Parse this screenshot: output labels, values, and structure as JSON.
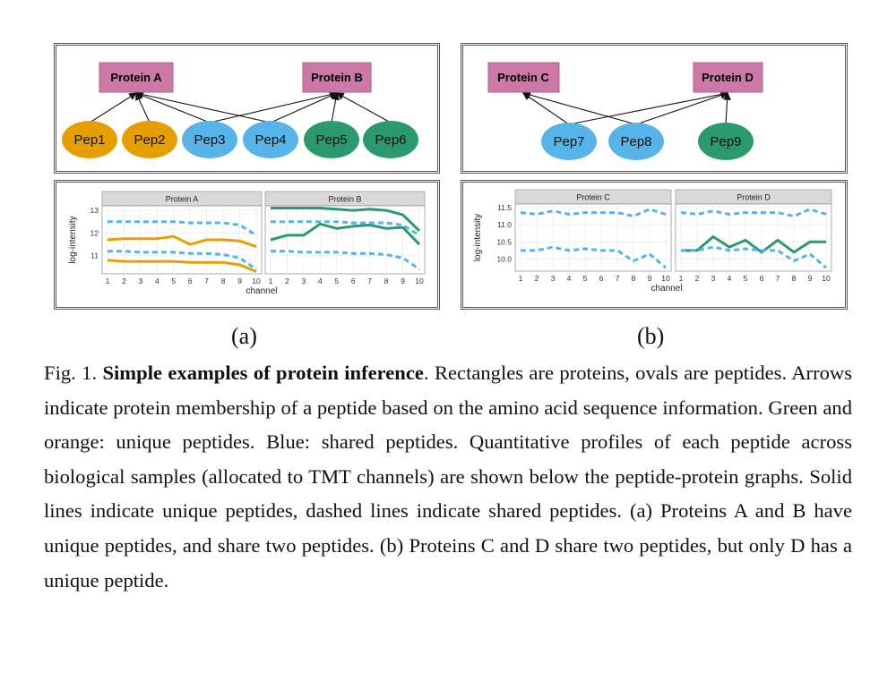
{
  "panel_a": {
    "proteins": [
      "Protein A",
      "Protein B"
    ],
    "peptides": [
      {
        "label": "Pep1",
        "type": "unique-orange"
      },
      {
        "label": "Pep2",
        "type": "unique-orange"
      },
      {
        "label": "Pep3",
        "type": "shared"
      },
      {
        "label": "Pep4",
        "type": "shared"
      },
      {
        "label": "Pep5",
        "type": "unique-green"
      },
      {
        "label": "Pep6",
        "type": "unique-green"
      }
    ],
    "edges": [
      [
        "Pep1",
        "Protein A"
      ],
      [
        "Pep2",
        "Protein A"
      ],
      [
        "Pep3",
        "Protein A"
      ],
      [
        "Pep4",
        "Protein A"
      ],
      [
        "Pep3",
        "Protein B"
      ],
      [
        "Pep4",
        "Protein B"
      ],
      [
        "Pep5",
        "Protein B"
      ],
      [
        "Pep6",
        "Protein B"
      ]
    ],
    "label": "(a)"
  },
  "panel_b": {
    "proteins": [
      "Protein C",
      "Protein D"
    ],
    "peptides": [
      {
        "label": "Pep7",
        "type": "shared"
      },
      {
        "label": "Pep8",
        "type": "shared"
      },
      {
        "label": "Pep9",
        "type": "unique-green"
      }
    ],
    "edges": [
      [
        "Pep7",
        "Protein C"
      ],
      [
        "Pep8",
        "Protein C"
      ],
      [
        "Pep7",
        "Protein D"
      ],
      [
        "Pep8",
        "Protein D"
      ],
      [
        "Pep9",
        "Protein D"
      ]
    ],
    "label": "(b)"
  },
  "colors": {
    "protein_fill": "#cc79a7",
    "orange": "#e69f00",
    "blue": "#56b4e9",
    "green": "#2a9a6e",
    "facet_strip": "#d9d9d9",
    "grid": "#ebebeb"
  },
  "chart_data": [
    {
      "type": "line",
      "facets": [
        "Protein A",
        "Protein B"
      ],
      "xlabel": "channel",
      "ylabel": "log-intensity",
      "x": [
        1,
        2,
        3,
        4,
        5,
        6,
        7,
        8,
        9,
        10
      ],
      "ylim": [
        10.2,
        13.2
      ],
      "yticks": [
        11,
        12,
        13
      ],
      "series": [
        {
          "facet": "Protein A",
          "style": "solid",
          "color": "orange",
          "values": [
            11.7,
            11.75,
            11.75,
            11.75,
            11.85,
            11.5,
            11.7,
            11.7,
            11.65,
            11.4
          ]
        },
        {
          "facet": "Protein A",
          "style": "solid",
          "color": "orange",
          "values": [
            10.8,
            10.75,
            10.75,
            10.75,
            10.75,
            10.7,
            10.7,
            10.7,
            10.6,
            10.3
          ]
        },
        {
          "facet": "Protein A",
          "style": "dashed",
          "color": "blue",
          "values": [
            12.5,
            12.5,
            12.5,
            12.5,
            12.5,
            12.45,
            12.45,
            12.45,
            12.35,
            11.9
          ]
        },
        {
          "facet": "Protein A",
          "style": "dashed",
          "color": "blue",
          "values": [
            11.2,
            11.2,
            11.15,
            11.15,
            11.15,
            11.1,
            11.1,
            11.05,
            10.9,
            10.4
          ]
        },
        {
          "facet": "Protein B",
          "style": "solid",
          "color": "green",
          "values": [
            13.1,
            13.1,
            13.1,
            13.1,
            13.05,
            13.0,
            13.05,
            13.0,
            12.8,
            12.1
          ]
        },
        {
          "facet": "Protein B",
          "style": "solid",
          "color": "green",
          "values": [
            11.7,
            11.9,
            11.9,
            12.4,
            12.2,
            12.3,
            12.35,
            12.2,
            12.25,
            11.5
          ]
        },
        {
          "facet": "Protein B",
          "style": "dashed",
          "color": "blue",
          "values": [
            12.5,
            12.5,
            12.5,
            12.5,
            12.5,
            12.45,
            12.45,
            12.45,
            12.35,
            11.9
          ]
        },
        {
          "facet": "Protein B",
          "style": "dashed",
          "color": "blue",
          "values": [
            11.2,
            11.2,
            11.15,
            11.15,
            11.15,
            11.1,
            11.1,
            11.05,
            10.9,
            10.4
          ]
        }
      ]
    },
    {
      "type": "line",
      "facets": [
        "Protein C",
        "Protein D"
      ],
      "xlabel": "channel",
      "ylabel": "log-intensity",
      "x": [
        1,
        2,
        3,
        4,
        5,
        6,
        7,
        8,
        9,
        10
      ],
      "ylim": [
        9.65,
        11.6
      ],
      "yticks": [
        10.0,
        10.5,
        11.0,
        11.5
      ],
      "ytick_labels": [
        "10.0",
        "10.5",
        "11.0",
        "11.5"
      ],
      "series": [
        {
          "facet": "Protein C",
          "style": "dashed",
          "color": "blue",
          "values": [
            11.35,
            11.3,
            11.4,
            11.3,
            11.35,
            11.35,
            11.35,
            11.25,
            11.45,
            11.3
          ]
        },
        {
          "facet": "Protein C",
          "style": "dashed",
          "color": "blue",
          "values": [
            10.25,
            10.25,
            10.35,
            10.25,
            10.3,
            10.25,
            10.25,
            9.95,
            10.15,
            9.75
          ]
        },
        {
          "facet": "Protein D",
          "style": "solid",
          "color": "green",
          "values": [
            10.25,
            10.25,
            10.65,
            10.35,
            10.55,
            10.2,
            10.55,
            10.2,
            10.5,
            10.5
          ]
        },
        {
          "facet": "Protein D",
          "style": "dashed",
          "color": "blue",
          "values": [
            11.35,
            11.3,
            11.4,
            11.3,
            11.35,
            11.35,
            11.35,
            11.25,
            11.45,
            11.3
          ]
        },
        {
          "facet": "Protein D",
          "style": "dashed",
          "color": "blue",
          "values": [
            10.25,
            10.25,
            10.35,
            10.25,
            10.3,
            10.25,
            10.25,
            9.95,
            10.15,
            9.75
          ]
        }
      ]
    }
  ],
  "caption": {
    "prefix": "Fig. 1. ",
    "bold": "Simple examples of protein inference",
    "text": ". Rectangles are proteins, ovals are peptides. Arrows indicate protein membership of a peptide based on the amino acid sequence information. Green and orange: unique peptides. Blue: shared peptides. Quantitative profiles of each peptide across biological samples (allocated to TMT channels) are shown below the peptide-protein graphs. Solid lines indicate unique peptides, dashed lines indicate shared peptides. (a) Proteins A and B have unique peptides, and share two peptides. (b) Proteins C and D share two peptides, but only D has a unique peptide."
  }
}
